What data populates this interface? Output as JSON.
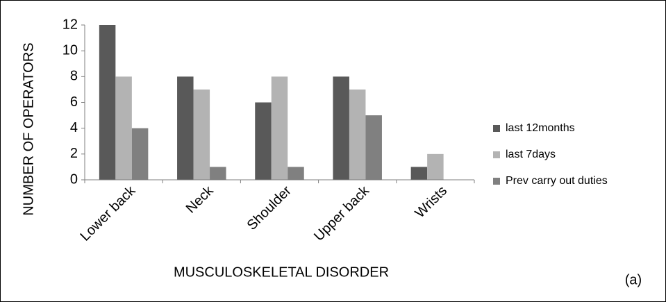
{
  "chart_data": {
    "type": "bar",
    "x_label": "MUSCULOSKELETAL DISORDER",
    "y_label": "NUMBER OF OPERATORS",
    "annotation": "(a)",
    "categories": [
      "Lower back",
      "Neck",
      "Shoulder",
      "Upper back",
      "Wrists"
    ],
    "series": [
      {
        "name": "last 12months",
        "color": "#595959",
        "values": [
          12,
          8,
          6,
          8,
          1
        ]
      },
      {
        "name": "last 7days",
        "color": "#b3b3b3",
        "values": [
          8,
          7,
          8,
          7,
          2
        ]
      },
      {
        "name": "Prev carry out duties",
        "color": "#808080",
        "values": [
          4,
          1,
          1,
          5,
          0
        ]
      }
    ],
    "ylim": [
      0,
      12
    ],
    "yticks": [
      0,
      2,
      4,
      6,
      8,
      10,
      12
    ],
    "grid": false,
    "legend": "right"
  }
}
